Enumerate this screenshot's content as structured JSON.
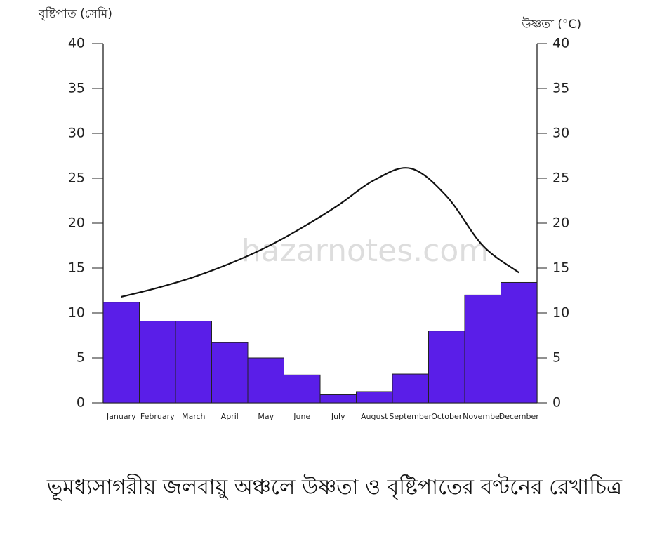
{
  "chart_data": {
    "type": "bar",
    "title": "ভূমধ্যসাগরীয় জলবায়ু অঞ্চলে উষ্ণতা ও বৃষ্টিপাতের বণ্টনের রেখাচিত্র",
    "y_label": "বৃষ্টিপাত (সেমি)",
    "y2_label": "উষ্ণতা (°C)",
    "watermark": "hazarnotes.com",
    "categories": [
      "January",
      "February",
      "March",
      "April",
      "May",
      "June",
      "July",
      "August",
      "September",
      "October",
      "November",
      "December"
    ],
    "series": [
      {
        "type": "bar",
        "axis": "y",
        "color": "#5a1ee8",
        "values": [
          11.2,
          9.1,
          9.1,
          6.7,
          5,
          3.1,
          0.9,
          1.25,
          3.2,
          8,
          12,
          13.4
        ]
      },
      {
        "type": "line",
        "axis": "y2",
        "color": "#111111",
        "values": [
          11.8,
          12.8,
          14,
          15.5,
          17.3,
          19.5,
          22,
          24.8,
          26.1,
          23,
          17.5,
          14.5
        ]
      }
    ],
    "ylim": [
      0,
      40
    ],
    "yticks": [
      0,
      5,
      10,
      15,
      20,
      25,
      30,
      35,
      40
    ],
    "y2lim": [
      0,
      40
    ],
    "y2ticks": [
      0,
      5,
      10,
      15,
      20,
      25,
      30,
      35,
      40
    ]
  }
}
